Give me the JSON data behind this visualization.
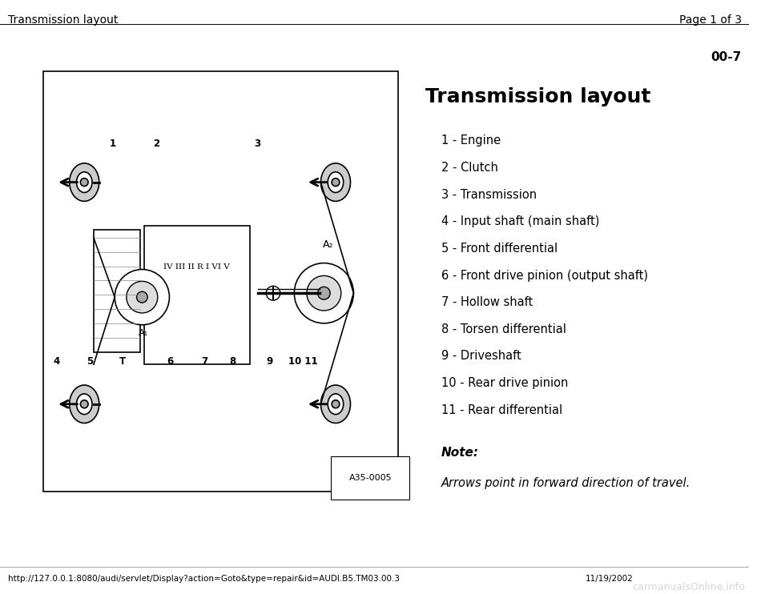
{
  "bg_color": "#f0f0f0",
  "page_bg": "#ffffff",
  "header_left": "Transmission layout",
  "header_right": "Page 1 of 3",
  "page_number": "00-7",
  "title": "Transmission layout",
  "items": [
    "1 - Engine",
    "2 - Clutch",
    "3 - Transmission",
    "4 - Input shaft (main shaft)",
    "5 - Front differential",
    "6 - Front drive pinion (output shaft)",
    "7 - Hollow shaft",
    "8 - Torsen differential",
    "9 - Driveshaft",
    "10 - Rear drive pinion",
    "11 - Rear differential"
  ],
  "note_label": "Note:",
  "note_text": "Arrows point in forward direction of travel.",
  "diagram_label": "A35-0005",
  "footer_url": "http://127.0.0.1:8080/audi/servlet/Display?action=Goto&type=repair&id=AUDI.B5.TM03.00.3",
  "footer_right": "11/19/2002",
  "footer_watermark": "carmanualsOnline.info"
}
